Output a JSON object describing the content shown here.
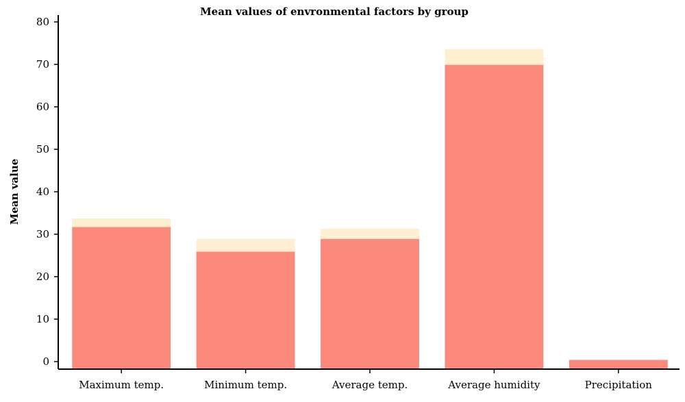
{
  "chart_data": {
    "type": "bar",
    "stacked": true,
    "title": "Mean values of envronmental factors by group",
    "xlabel": "",
    "ylabel": "Mean value",
    "categories": [
      "Maximum temp.",
      "Minimum temp.",
      "Average temp.",
      "Average humidity",
      "Precipitation"
    ],
    "series": [
      {
        "values": [
          31.7,
          25.9,
          28.9,
          69.9,
          0.4
        ],
        "color": "#fb8a7d"
      },
      {
        "values": [
          2.0,
          3.0,
          2.4,
          3.7,
          0.0
        ],
        "color": "#fdefcf"
      }
    ],
    "ylim": [
      0,
      82
    ],
    "yticks": [
      0,
      10,
      20,
      30,
      40,
      50,
      60,
      70,
      80
    ],
    "grid": false,
    "legend": "none"
  }
}
